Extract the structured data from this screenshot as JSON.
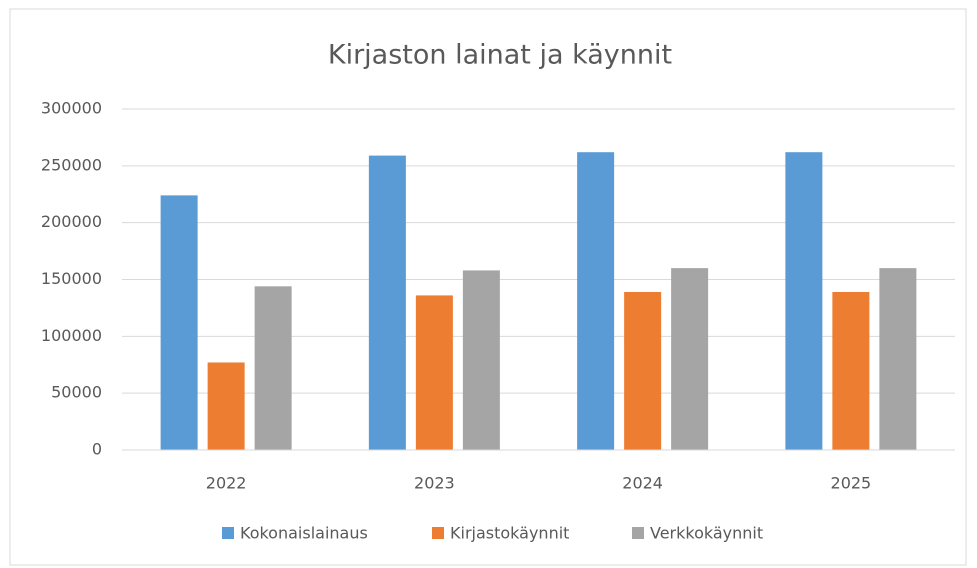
{
  "chart_data": {
    "type": "bar",
    "title": "Kirjaston lainat ja käynnit",
    "categories": [
      "2022",
      "2023",
      "2024",
      "2025"
    ],
    "series": [
      {
        "name": "Kokonaislainaus",
        "color": "#5b9bd5",
        "values": [
          224000,
          259000,
          262000,
          262000
        ]
      },
      {
        "name": "Kirjastokäynnit",
        "color": "#ed7d31",
        "values": [
          77000,
          136000,
          139000,
          139000
        ]
      },
      {
        "name": "Verkkokäynnit",
        "color": "#a5a5a5",
        "values": [
          144000,
          158000,
          160000,
          160000
        ]
      }
    ],
    "ylim": [
      0,
      300000
    ],
    "yticks": [
      0,
      50000,
      100000,
      150000,
      200000,
      250000,
      300000
    ],
    "grid": true,
    "legend": "bottom"
  }
}
